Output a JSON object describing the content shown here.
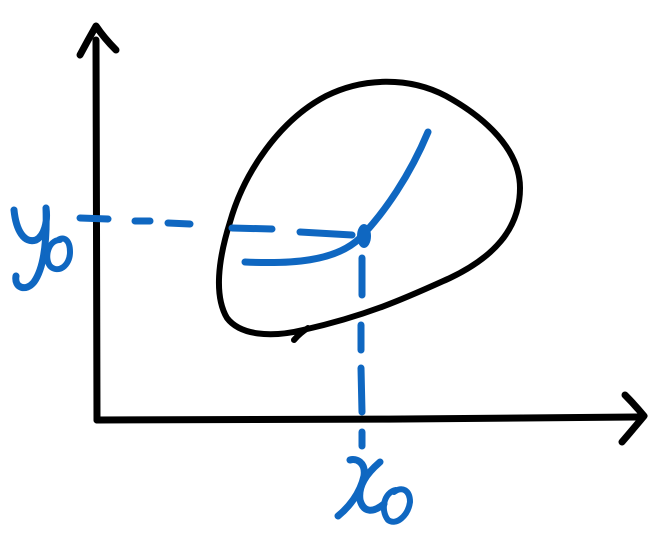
{
  "labels": {
    "y_axis_point": "y0",
    "x_axis_point": "x0"
  },
  "colors": {
    "ink": "#000000",
    "accent": "#0f67c1"
  }
}
